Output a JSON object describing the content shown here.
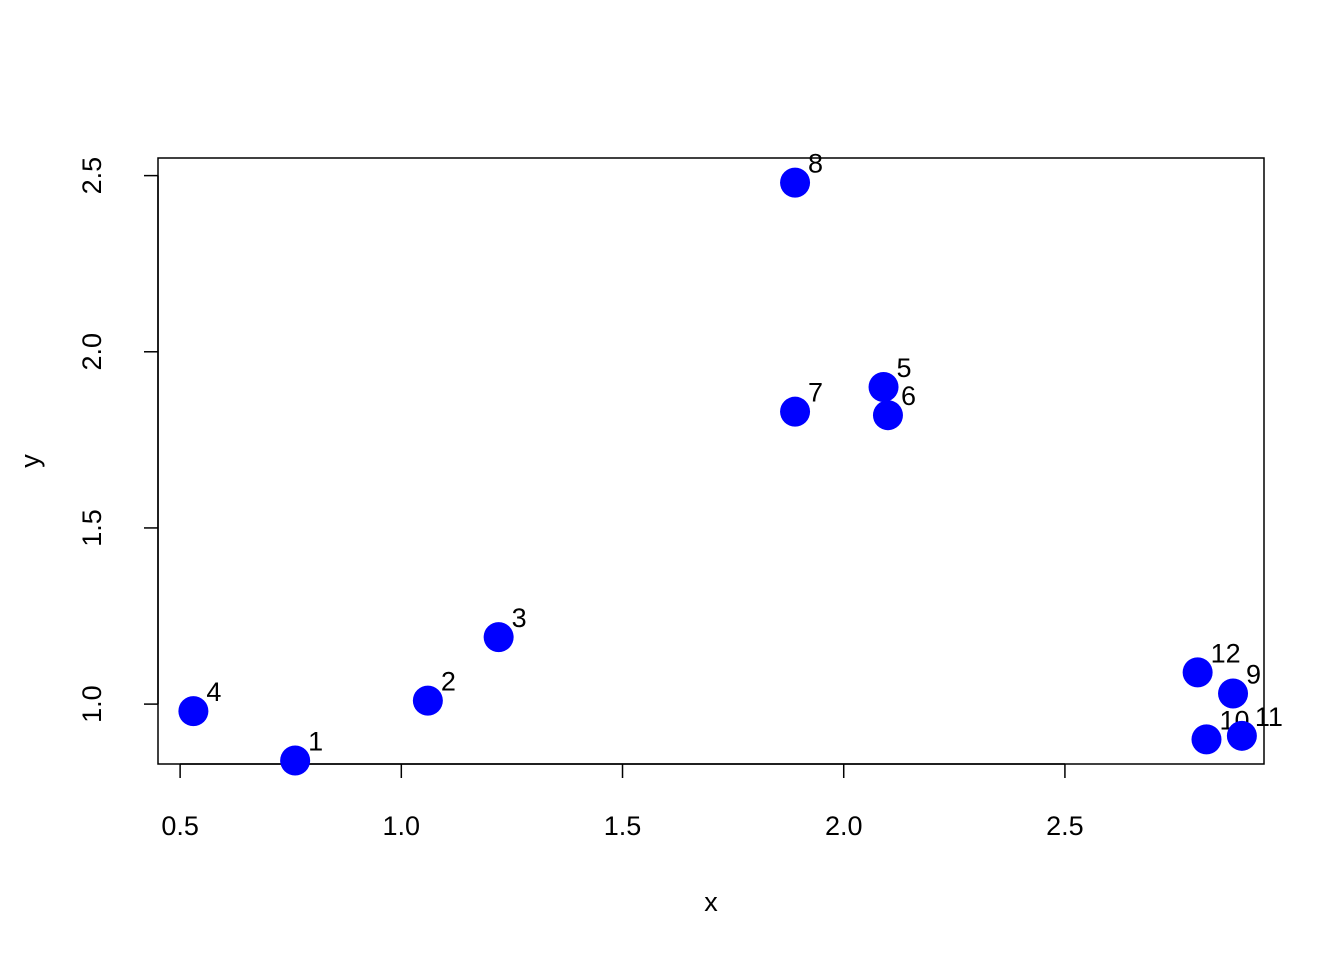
{
  "chart_data": {
    "type": "scatter",
    "title": "",
    "xlabel": "x",
    "ylabel": "y",
    "xlim": [
      0.45,
      2.95
    ],
    "ylim": [
      0.83,
      2.55
    ],
    "xticks": [
      0.5,
      1.0,
      1.5,
      2.0,
      2.5
    ],
    "xtick_labels": [
      "0.5",
      "1.0",
      "1.5",
      "2.0",
      "2.5"
    ],
    "yticks": [
      1.0,
      1.5,
      2.0,
      2.5
    ],
    "ytick_labels": [
      "1.0",
      "1.5",
      "2.0",
      "2.5"
    ],
    "grid": false,
    "point_color": "#0000ff",
    "points": [
      {
        "label": "1",
        "x": 0.76,
        "y": 0.84
      },
      {
        "label": "2",
        "x": 1.06,
        "y": 1.01
      },
      {
        "label": "3",
        "x": 1.22,
        "y": 1.19
      },
      {
        "label": "4",
        "x": 0.53,
        "y": 0.98
      },
      {
        "label": "5",
        "x": 2.09,
        "y": 1.9
      },
      {
        "label": "6",
        "x": 2.1,
        "y": 1.82
      },
      {
        "label": "7",
        "x": 1.89,
        "y": 1.83
      },
      {
        "label": "8",
        "x": 1.89,
        "y": 2.48
      },
      {
        "label": "9",
        "x": 2.88,
        "y": 1.03
      },
      {
        "label": "10",
        "x": 2.82,
        "y": 0.9
      },
      {
        "label": "11",
        "x": 2.9,
        "y": 0.91
      },
      {
        "label": "12",
        "x": 2.8,
        "y": 1.09
      }
    ]
  }
}
